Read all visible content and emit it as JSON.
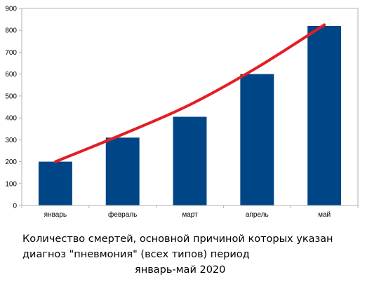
{
  "chart_data": {
    "type": "bar",
    "categories": [
      "январь",
      "февраль",
      "март",
      "апрель",
      "май"
    ],
    "values": [
      200,
      310,
      405,
      600,
      820
    ],
    "ylim": [
      0,
      900
    ],
    "yticks": [
      0,
      100,
      200,
      300,
      400,
      500,
      600,
      700,
      800,
      900
    ],
    "grid": false,
    "bar_color": "#004586",
    "trend_line": {
      "color": "#e31e24",
      "points": [
        {
          "x": "январь",
          "y": 200
        },
        {
          "x": "февраль",
          "y": 325
        },
        {
          "x": "март",
          "y": 460
        },
        {
          "x": "апрель",
          "y": 630
        },
        {
          "x": "май",
          "y": 825
        }
      ]
    },
    "caption_lines": [
      "Количество смертей, основной причиной которых указан",
      "диагноз \"пневмония\" (всех типов) период",
      "январь-май 2020"
    ]
  }
}
